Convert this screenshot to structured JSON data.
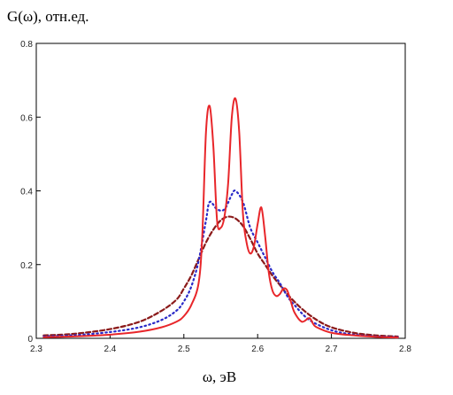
{
  "chart_data": {
    "type": "line",
    "title": "G(ω), отн.ед.",
    "xlabel": "ω, эВ",
    "ylabel": "",
    "xlim": [
      2.3,
      2.8
    ],
    "ylim": [
      0,
      0.8
    ],
    "x_ticks": [
      "2.3",
      "2.4",
      "2.5",
      "2.6",
      "2.7",
      "2.8"
    ],
    "y_ticks": [
      "0",
      "0.2",
      "0.4",
      "0.6",
      "0.8"
    ],
    "grid": false,
    "series": [
      {
        "style": "solid",
        "color": "#e8262a",
        "x": [
          2.31,
          2.35,
          2.4,
          2.44,
          2.47,
          2.49,
          2.5,
          2.51,
          2.52,
          2.525,
          2.53,
          2.535,
          2.54,
          2.545,
          2.55,
          2.555,
          2.56,
          2.565,
          2.57,
          2.575,
          2.58,
          2.585,
          2.59,
          2.595,
          2.6,
          2.605,
          2.61,
          2.615,
          2.62,
          2.625,
          2.63,
          2.635,
          2.64,
          2.645,
          2.65,
          2.66,
          2.67,
          2.675,
          2.68,
          2.7,
          2.73,
          2.76,
          2.79
        ],
        "y": [
          0.003,
          0.005,
          0.01,
          0.018,
          0.03,
          0.045,
          0.06,
          0.09,
          0.15,
          0.28,
          0.56,
          0.63,
          0.52,
          0.32,
          0.3,
          0.33,
          0.42,
          0.6,
          0.65,
          0.56,
          0.34,
          0.26,
          0.23,
          0.25,
          0.31,
          0.355,
          0.28,
          0.18,
          0.13,
          0.115,
          0.12,
          0.135,
          0.13,
          0.1,
          0.07,
          0.045,
          0.055,
          0.04,
          0.03,
          0.015,
          0.008,
          0.004,
          0.002
        ]
      },
      {
        "style": "dotted",
        "color": "#2a2ac8",
        "x": [
          2.31,
          2.35,
          2.4,
          2.44,
          2.47,
          2.49,
          2.5,
          2.51,
          2.52,
          2.53,
          2.535,
          2.545,
          2.555,
          2.565,
          2.57,
          2.58,
          2.59,
          2.6,
          2.61,
          2.62,
          2.63,
          2.64,
          2.65,
          2.67,
          2.7,
          2.73,
          2.76,
          2.79
        ],
        "y": [
          0.005,
          0.008,
          0.017,
          0.03,
          0.05,
          0.075,
          0.1,
          0.14,
          0.21,
          0.32,
          0.37,
          0.35,
          0.35,
          0.39,
          0.4,
          0.37,
          0.3,
          0.26,
          0.22,
          0.18,
          0.15,
          0.115,
          0.09,
          0.05,
          0.022,
          0.01,
          0.005,
          0.003
        ]
      },
      {
        "style": "dashed",
        "color": "#8b1a1a",
        "x": [
          2.31,
          2.35,
          2.4,
          2.44,
          2.47,
          2.49,
          2.5,
          2.51,
          2.52,
          2.53,
          2.54,
          2.55,
          2.56,
          2.57,
          2.58,
          2.59,
          2.6,
          2.61,
          2.62,
          2.63,
          2.64,
          2.66,
          2.68,
          2.7,
          2.73,
          2.76,
          2.79
        ],
        "y": [
          0.008,
          0.012,
          0.025,
          0.045,
          0.075,
          0.105,
          0.135,
          0.17,
          0.215,
          0.26,
          0.295,
          0.32,
          0.33,
          0.325,
          0.305,
          0.27,
          0.23,
          0.2,
          0.17,
          0.145,
          0.12,
          0.08,
          0.05,
          0.03,
          0.015,
          0.008,
          0.005
        ]
      }
    ]
  }
}
